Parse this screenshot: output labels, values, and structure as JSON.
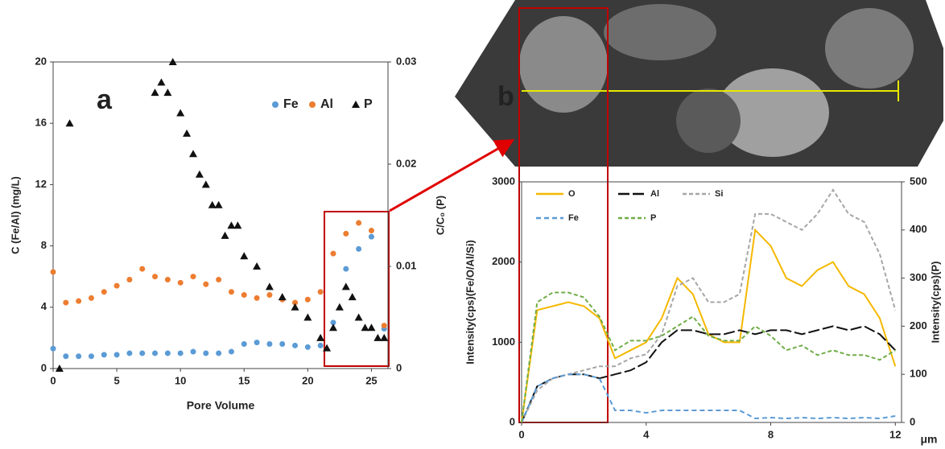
{
  "chart_data": [
    {
      "type": "scatter",
      "label": "a",
      "xlabel": "Pore Volume",
      "ylabel": "C (Fe/Al) (mg/L)",
      "y2label": "C/C₀ (P)",
      "xlim": [
        0,
        26.3
      ],
      "xticks": [
        0,
        5,
        10,
        15,
        20,
        25
      ],
      "ylim": [
        0,
        20
      ],
      "yticks": [
        0,
        4,
        8,
        12,
        16,
        20
      ],
      "y2lim": [
        0,
        0.03
      ],
      "y2ticks": [
        0,
        0.01,
        0.02,
        0.03
      ],
      "series": [
        {
          "name": "Fe",
          "color": "#5b9bd5",
          "marker": "circle",
          "x": [
            0,
            1,
            2,
            3,
            4,
            5,
            6,
            7,
            8,
            9,
            10,
            11,
            12,
            13,
            14,
            15,
            16,
            17,
            18,
            19,
            20,
            21,
            22,
            23,
            24,
            25,
            26
          ],
          "values": [
            1.3,
            0.8,
            0.8,
            0.8,
            0.9,
            0.9,
            1.0,
            1.0,
            1.0,
            1.0,
            1.0,
            1.1,
            1.0,
            1.0,
            1.1,
            1.6,
            1.7,
            1.6,
            1.6,
            1.5,
            1.4,
            1.5,
            3.0,
            6.5,
            7.8,
            8.6,
            2.6
          ]
        },
        {
          "name": "Al",
          "color": "#ed7d31",
          "marker": "circle",
          "x": [
            0,
            1,
            2,
            3,
            4,
            5,
            6,
            7,
            8,
            9,
            10,
            11,
            12,
            13,
            14,
            15,
            16,
            17,
            18,
            19,
            20,
            21,
            22,
            23,
            24,
            25,
            26
          ],
          "values": [
            6.3,
            4.3,
            4.4,
            4.6,
            5.0,
            5.4,
            5.8,
            6.5,
            6.0,
            5.8,
            5.6,
            6.0,
            5.5,
            5.8,
            5.0,
            4.8,
            4.6,
            4.8,
            4.5,
            4.3,
            4.5,
            5.0,
            7.5,
            8.8,
            9.5,
            9.0,
            2.8
          ]
        },
        {
          "name": "P",
          "color": "#111111",
          "marker": "triangle",
          "axis": "y2",
          "x": [
            0.5,
            1.3,
            8,
            8.5,
            9,
            9.4,
            10,
            10.5,
            11,
            11.5,
            12,
            12.5,
            13,
            13.5,
            14,
            14.5,
            15,
            16,
            17,
            18,
            19,
            20,
            21,
            21.5,
            22,
            22.5,
            23,
            23.5,
            24,
            24.5,
            25,
            25.5,
            26
          ],
          "values": [
            0,
            0.024,
            0.027,
            0.028,
            0.027,
            0.03,
            0.025,
            0.023,
            0.021,
            0.019,
            0.018,
            0.016,
            0.016,
            0.013,
            0.014,
            0.014,
            0.011,
            0.01,
            0.008,
            0.007,
            0.006,
            0.005,
            0.003,
            0.002,
            0.004,
            0.006,
            0.008,
            0.007,
            0.005,
            0.004,
            0.004,
            0.003,
            0.003
          ]
        }
      ]
    },
    {
      "type": "line",
      "label": "b",
      "xlabel": "μm",
      "ylabel": "Intensity(cps)(Fe/O/Al/Si)",
      "y2label": "Intensity(cps)(P)",
      "xlim": [
        0,
        12.2
      ],
      "xticks": [
        0,
        4,
        8,
        12
      ],
      "ylim": [
        0,
        3000
      ],
      "yticks": [
        0,
        1000,
        2000,
        3000
      ],
      "y2lim": [
        0,
        500
      ],
      "y2ticks": [
        0,
        100,
        200,
        300,
        400,
        500
      ],
      "x": [
        0,
        0.5,
        1,
        1.5,
        2,
        2.5,
        3,
        3.5,
        4,
        4.5,
        5,
        5.5,
        6,
        6.5,
        7,
        7.5,
        8,
        8.5,
        9,
        9.5,
        10,
        10.5,
        11,
        11.5,
        12
      ],
      "series": [
        {
          "name": "O",
          "color": "#f5b800",
          "dash": "none",
          "values": [
            0,
            1400,
            1450,
            1500,
            1450,
            1300,
            800,
            900,
            1000,
            1300,
            1800,
            1600,
            1100,
            1000,
            1000,
            2400,
            2200,
            1800,
            1700,
            1900,
            2000,
            1700,
            1600,
            1300,
            700
          ]
        },
        {
          "name": "Al",
          "color": "#111111",
          "dash": "14,4",
          "values": [
            0,
            450,
            550,
            600,
            600,
            550,
            600,
            650,
            750,
            1000,
            1150,
            1150,
            1100,
            1100,
            1150,
            1100,
            1150,
            1150,
            1100,
            1150,
            1200,
            1150,
            1200,
            1100,
            900
          ]
        },
        {
          "name": "Si",
          "color": "#a6a6a6",
          "dash": "5,3",
          "values": [
            0,
            400,
            550,
            600,
            650,
            700,
            700,
            800,
            850,
            1100,
            1700,
            1800,
            1500,
            1500,
            1600,
            2600,
            2600,
            2500,
            2400,
            2600,
            2900,
            2600,
            2500,
            2100,
            1400
          ]
        },
        {
          "name": "Fe",
          "color": "#5b9bd5",
          "dash": "6,4",
          "values": [
            0,
            450,
            550,
            600,
            600,
            550,
            150,
            150,
            120,
            150,
            150,
            150,
            150,
            150,
            150,
            50,
            60,
            50,
            60,
            50,
            60,
            50,
            60,
            50,
            80
          ]
        },
        {
          "name": "P",
          "color": "#70ad47",
          "dash": "5,3",
          "axis": "y2",
          "values": [
            0,
            250,
            270,
            270,
            260,
            220,
            150,
            170,
            170,
            180,
            200,
            220,
            180,
            170,
            170,
            200,
            180,
            150,
            160,
            140,
            150,
            140,
            140,
            130,
            150
          ]
        }
      ]
    }
  ]
}
